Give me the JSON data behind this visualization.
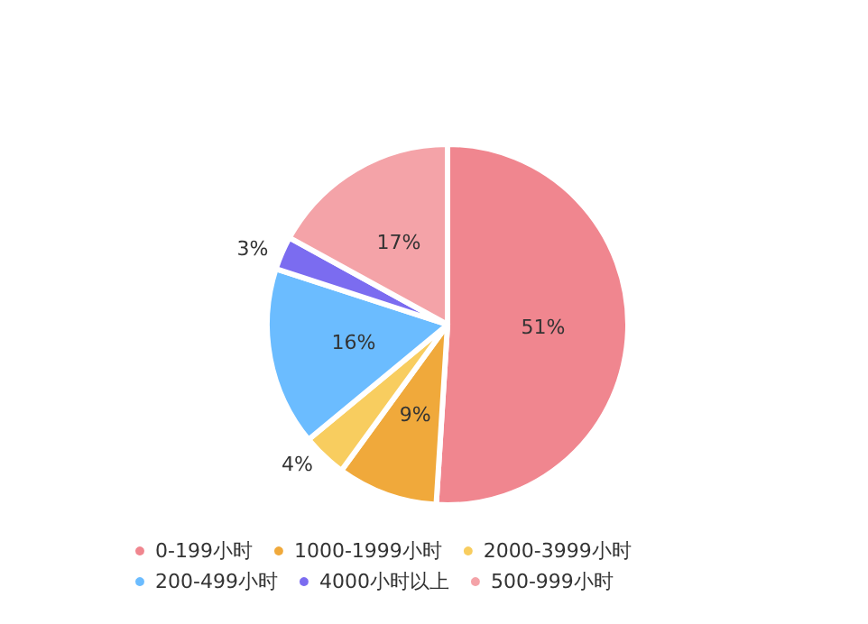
{
  "chart_data": {
    "type": "pie",
    "categories": [
      "0-199小时",
      "1000-1999小时",
      "2000-3999小时",
      "200-499小时",
      "4000小时以上",
      "500-999小时"
    ],
    "values": [
      51,
      9,
      4,
      16,
      3,
      17
    ],
    "colors": [
      "#f0868f",
      "#f0a93b",
      "#f8cd5f",
      "#6bbcff",
      "#7b6cf0",
      "#f4a3a8"
    ],
    "value_labels": [
      "51%",
      "9%",
      "4%",
      "16%",
      "3%",
      "17%"
    ],
    "legend": "bottom"
  }
}
